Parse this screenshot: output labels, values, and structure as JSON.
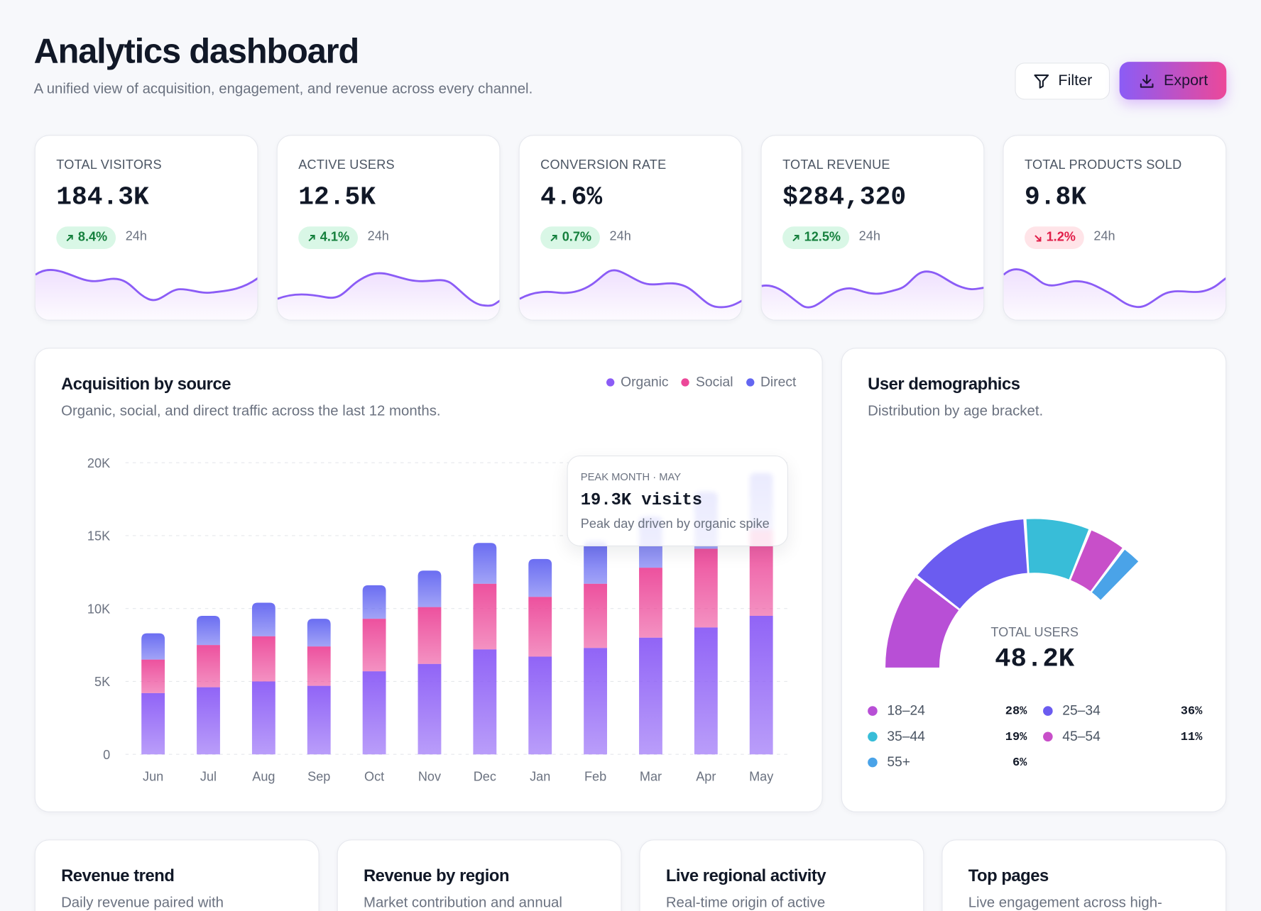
{
  "header": {
    "title": "Analytics dashboard",
    "subtitle": "A unified view of acquisition, engagement, and revenue across every channel.",
    "actions": [
      "Filter",
      "Export"
    ]
  },
  "kpis": [
    {
      "label": "TOTAL VISITORS",
      "value": "184.3K",
      "change": "8.4%",
      "trend": "up",
      "period": "24h"
    },
    {
      "label": "ACTIVE USERS",
      "value": "12.5K",
      "change": "4.1%",
      "trend": "up",
      "period": "24h"
    },
    {
      "label": "CONVERSION RATE",
      "value": "4.6%",
      "change": "0.7%",
      "trend": "up",
      "period": "24h"
    },
    {
      "label": "TOTAL REVENUE",
      "value": "$284,320",
      "change": "12.5%",
      "trend": "up",
      "period": "24h"
    },
    {
      "label": "TOTAL PRODUCTS SOLD",
      "value": "9.8K",
      "change": "1.2%",
      "trend": "down",
      "period": "24h"
    }
  ],
  "chart_data": [
    {
      "type": "bar",
      "stacked": true,
      "title": "Acquisition by source",
      "subtitle": "Organic, social, and direct traffic across the last 12 months.",
      "categories": [
        "Jun",
        "Jul",
        "Aug",
        "Sep",
        "Oct",
        "Nov",
        "Dec",
        "Jan",
        "Feb",
        "Mar",
        "Apr",
        "May"
      ],
      "series": [
        {
          "name": "Organic",
          "color": "#8b5cf6",
          "values": [
            4200,
            4600,
            5000,
            4700,
            5700,
            6200,
            7200,
            6700,
            7300,
            8000,
            8700,
            9500
          ]
        },
        {
          "name": "Social",
          "color": "#ec4899",
          "values": [
            2300,
            2900,
            3100,
            2700,
            3600,
            3900,
            4500,
            4100,
            4400,
            4800,
            5400,
            5900
          ]
        },
        {
          "name": "Direct",
          "color": "#6366f1",
          "values": [
            1800,
            2000,
            2300,
            1900,
            2300,
            2500,
            2800,
            2600,
            2900,
            3500,
            3900,
            3900
          ]
        }
      ],
      "ylim": [
        0,
        20000
      ],
      "yticks": [
        0,
        {
          "value": 5000,
          "label": "5K"
        },
        {
          "value": 10000,
          "label": "10K"
        },
        {
          "value": 15000,
          "label": "15K"
        },
        {
          "value": 20000,
          "label": "20K"
        }
      ],
      "grid": true,
      "legend": "top-right",
      "annotation": {
        "label": "PEAK MONTH · MAY",
        "value": "19.3K visits",
        "text": "Peak day driven by organic spike"
      }
    },
    {
      "type": "pie",
      "title": "User demographics",
      "subtitle": "Distribution by age bracket.",
      "categories": [
        "18–24",
        "25–34",
        "35–44",
        "45–54",
        "55+"
      ],
      "values": [
        28,
        36,
        19,
        11,
        6
      ],
      "value_labels": [
        "28%",
        "36%",
        "19%",
        "11%",
        "6%"
      ],
      "colors": [
        "#b84fd6",
        "#6b5cf0",
        "#38bdd8",
        "#c84fc9",
        "#4aa3e8"
      ],
      "center_label": "TOTAL USERS",
      "center_value": "48.2K"
    }
  ],
  "bottom_cards": [
    {
      "title": "Revenue trend",
      "subtitle": "Daily revenue paired with"
    },
    {
      "title": "Revenue by region",
      "subtitle": "Market contribution and annual"
    },
    {
      "title": "Live regional activity",
      "subtitle": "Real-time origin of active"
    },
    {
      "title": "Top pages",
      "subtitle": "Live engagement across high-"
    }
  ]
}
